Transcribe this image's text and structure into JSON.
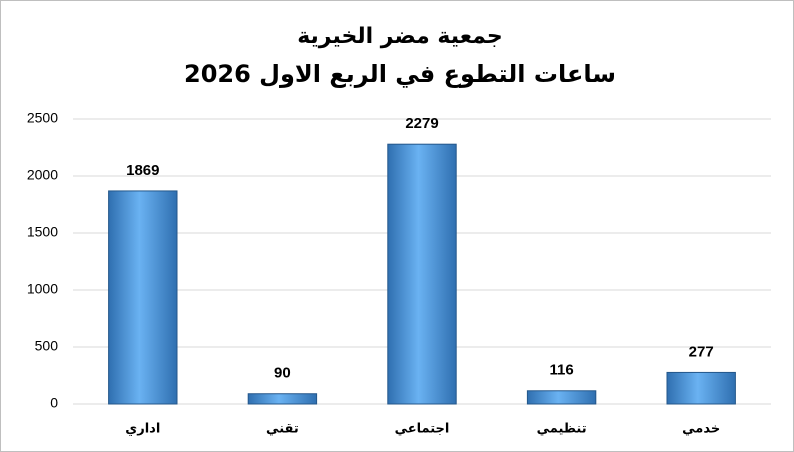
{
  "chart_data": {
    "type": "bar",
    "title": "جمعية مضر الخيرية",
    "subtitle": "ساعات التطوع في الربع الاول 2026",
    "categories": [
      "اداري",
      "تقني",
      "اجتماعي",
      "تنظيمي",
      "خدمي"
    ],
    "values": [
      1869,
      90,
      2279,
      116,
      277
    ],
    "color": "#3d8fdc",
    "ylim": [
      0,
      2500
    ],
    "yticks": [
      0,
      500,
      1000,
      1500,
      2000,
      2500
    ],
    "grid": true
  }
}
